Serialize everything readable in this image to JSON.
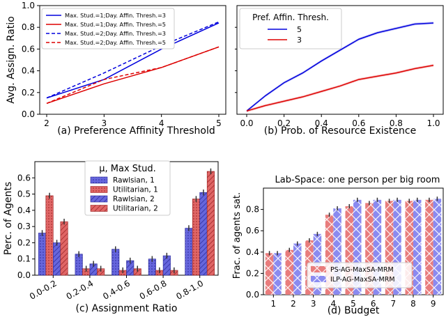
{
  "chart_data": [
    {
      "id": "a",
      "type": "line",
      "xlabel": "(a) Preference Affinity Threshold",
      "ylabel": "Avg. Assign. Ratio",
      "xlim": [
        2,
        5
      ],
      "ylim": [
        0,
        1.0
      ],
      "xticks": [
        2,
        3,
        4,
        5
      ],
      "yticks": [
        0.0,
        0.2,
        0.4,
        0.6,
        0.8,
        1.0
      ],
      "legend_position": "top-left",
      "x": [
        2,
        3,
        4,
        5
      ],
      "series": [
        {
          "name": "Max. Stud.=1;Day. Affin. Thresh.=3",
          "color": "#0000dd",
          "dash": "solid",
          "values": [
            0.15,
            0.32,
            0.6,
            0.84
          ]
        },
        {
          "name": "Max. Stud.=1;Day. Affin. Thresh.=5",
          "color": "#dd0000",
          "dash": "solid",
          "values": [
            0.1,
            0.28,
            0.43,
            0.62
          ]
        },
        {
          "name": "Max. Stud.=2;Day. Affin. Thresh.=3",
          "color": "#0000dd",
          "dash": "dashed",
          "values": [
            0.15,
            0.38,
            0.63,
            0.85
          ]
        },
        {
          "name": "Max. Stud.=2;Day. Affin. Thresh.=5",
          "color": "#dd0000",
          "dash": "dashed",
          "values": [
            0.1,
            0.32,
            0.43,
            0.62
          ]
        }
      ]
    },
    {
      "id": "b",
      "type": "line",
      "xlabel": "(b) Prob. of Resource Existence",
      "ylabel": "",
      "xlim": [
        0.0,
        1.0
      ],
      "ylim": [
        0,
        1.0
      ],
      "xticks": [
        0.0,
        0.2,
        0.4,
        0.6,
        0.8,
        1.0
      ],
      "legend_title": "Pref. Affin. Thresh.",
      "legend_position": "top-left",
      "x": [
        0.0,
        0.1,
        0.2,
        0.3,
        0.4,
        0.5,
        0.6,
        0.7,
        0.8,
        0.9,
        1.0
      ],
      "series": [
        {
          "name": "5",
          "color": "#0000dd",
          "values": [
            0.03,
            0.17,
            0.29,
            0.38,
            0.49,
            0.59,
            0.69,
            0.75,
            0.79,
            0.83,
            0.84
          ]
        },
        {
          "name": "3",
          "color": "#dd0000",
          "values": [
            0.03,
            0.08,
            0.12,
            0.16,
            0.21,
            0.26,
            0.32,
            0.35,
            0.38,
            0.42,
            0.45
          ]
        }
      ]
    },
    {
      "id": "c",
      "type": "bar",
      "xlabel": "(c) Assignment Ratio",
      "ylabel": "Perc. of Agents",
      "ylim": [
        0,
        0.7
      ],
      "yticks": [
        0.0,
        0.1,
        0.2,
        0.3,
        0.4,
        0.5,
        0.6
      ],
      "legend_title": "μ, Max Stud.",
      "legend_position": "top-left",
      "categories": [
        "0.0-0.2",
        "0.2-0.4",
        "0.4-0.6",
        "0.6-0.8",
        "0.8-1.0"
      ],
      "series": [
        {
          "name": "Rawlsian, 1",
          "color": "#6666dd",
          "hatch": "dots",
          "values": [
            0.26,
            0.13,
            0.16,
            0.1,
            0.29
          ]
        },
        {
          "name": "Utilitarian, 1",
          "color": "#e06666",
          "hatch": "dots",
          "values": [
            0.49,
            0.04,
            0.03,
            0.03,
            0.47
          ]
        },
        {
          "name": "Rawlsian, 2",
          "color": "#6666dd",
          "hatch": "diagonal",
          "values": [
            0.2,
            0.07,
            0.09,
            0.12,
            0.51
          ]
        },
        {
          "name": "Utilitarian, 2",
          "color": "#e06666",
          "hatch": "diagonal",
          "values": [
            0.33,
            0.04,
            0.04,
            0.03,
            0.64
          ]
        }
      ]
    },
    {
      "id": "d",
      "type": "bar",
      "title": "Lab-Space: one person per big room",
      "xlabel": "(d) Budget",
      "ylabel": "Frac. of agents sat.",
      "ylim": [
        0,
        1.0
      ],
      "yticks": [
        0.0,
        0.2,
        0.4,
        0.6,
        0.8
      ],
      "legend_position": "bottom-right",
      "categories": [
        "1",
        "2",
        "3",
        "4",
        "5",
        "6",
        "7",
        "8",
        "9"
      ],
      "series": [
        {
          "name": "PS-AG-MaxSA-MRM",
          "color": "#e87c7c",
          "values": [
            0.39,
            0.42,
            0.51,
            0.75,
            0.83,
            0.86,
            0.88,
            0.88,
            0.89
          ]
        },
        {
          "name": "ILP-AG-MaxSA-MRM",
          "color": "#8a8af0",
          "values": [
            0.39,
            0.48,
            0.57,
            0.81,
            0.89,
            0.89,
            0.89,
            0.89,
            0.9
          ]
        }
      ]
    }
  ]
}
